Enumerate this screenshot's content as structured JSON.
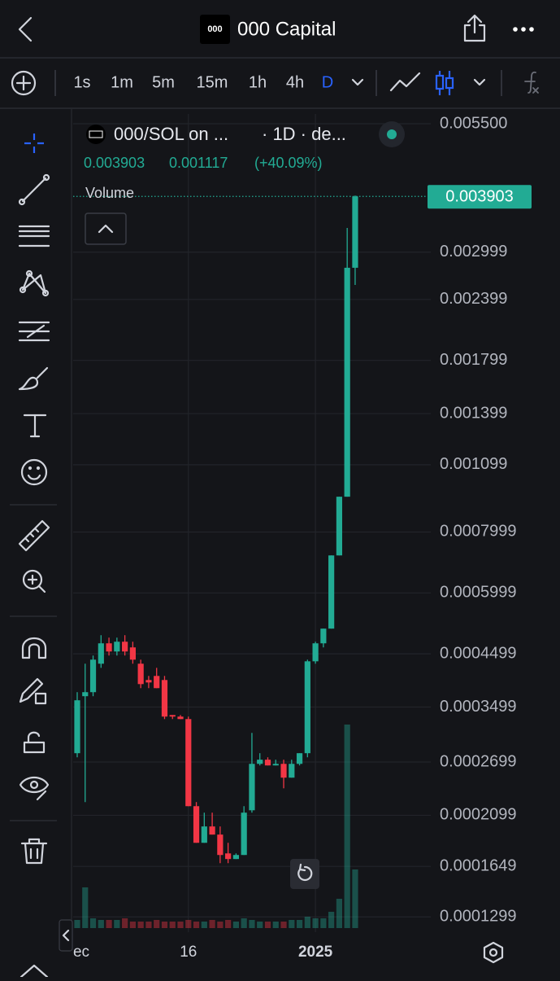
{
  "header": {
    "logo": "000",
    "title": "000 Capital"
  },
  "toolbar": {
    "timeframes": [
      "1s",
      "1m",
      "5m",
      "15m",
      "1h",
      "4h",
      "D"
    ],
    "active": "D"
  },
  "legend": {
    "symbol": "000/SOL on ...",
    "interval": "· 1D · de...",
    "change": "0.001117",
    "change_pct": "(+40.09%)",
    "volume": "Volume"
  },
  "chart_data": {
    "type": "candlestick",
    "log_scale": true,
    "grid": true,
    "up_color": "#22ab94",
    "down_color": "#f23645",
    "categories": [
      "ec",
      null,
      null,
      null,
      null,
      null,
      null,
      null,
      null,
      null,
      null,
      null,
      null,
      null,
      "16",
      null,
      null,
      null,
      null,
      null,
      null,
      null,
      null,
      null,
      null,
      null,
      null,
      null,
      null,
      null,
      "2025",
      null,
      null,
      null,
      null,
      null
    ],
    "open": [
      0.0002814,
      0.0003683,
      0.0003754,
      0.0004294,
      0.0004728,
      0.0004549,
      0.0004764,
      0.0004638,
      0.0004294,
      0.0003976,
      0.0004053,
      0.0003976,
      0.000337,
      0.0003345,
      0.0003306,
      0.0002191,
      0.0001843,
      0.0001991,
      0.0001916,
      0.0001753,
      0.0001707,
      0.000174,
      0.0002149,
      0.0002676,
      0.0002729,
      0.0002656,
      0.0002676,
      0.0002507,
      0.0002676,
      0.0002814,
      0.0004343,
      0.0004728,
      0.0005068,
      0.0007161,
      0.0009449,
      0.002786
    ],
    "high": [
      0.0003754,
      0.0004294,
      0.0004463,
      0.0004913,
      0.0004857,
      0.0004857,
      0.0004913,
      0.0004764,
      0.0004377,
      0.0004053,
      0.0004211,
      0.0004053,
      0.000337,
      0.000337,
      0.0003345,
      0.0002234,
      0.0002125,
      0.0002125,
      0.0001991,
      0.0001843,
      0.0001753,
      0.0002191,
      0.0003097,
      0.0002814,
      0.000276,
      0.0002729,
      0.0002729,
      0.0002729,
      0.0002814,
      0.0004377,
      0.0004764,
      0.0005068,
      0.0007161,
      0.0009449,
      0.003362,
      0.00392
    ],
    "low": [
      0.000276,
      0.0002234,
      0.0003683,
      0.0004211,
      0.0004463,
      0.0004463,
      0.0004463,
      0.0004294,
      0.0003826,
      0.0003826,
      0.0003826,
      0.0003306,
      0.0003306,
      0.0003306,
      0.0002191,
      0.0001843,
      0.0001843,
      0.0001916,
      0.0001674,
      0.0001674,
      0.0001707,
      0.000174,
      0.0002125,
      0.0002656,
      0.0002656,
      0.0002656,
      0.0002384,
      0.0002507,
      0.0002656,
      0.000276,
      0.0004294,
      0.0004638,
      0.0005068,
      0.0007161,
      0.0009449,
      0.002569
    ],
    "close": [
      0.0003613,
      0.0003754,
      0.0004377,
      0.0004728,
      0.0004549,
      0.0004764,
      0.0004549,
      0.0004377,
      0.00039,
      0.000393,
      0.0003826,
      0.0003345,
      0.0003345,
      0.0003306,
      0.0002191,
      0.0001843,
      0.0001991,
      0.0001916,
      0.000174,
      0.0001707,
      0.000174,
      0.0002125,
      0.0002676,
      0.0002729,
      0.0002656,
      0.0002676,
      0.0002507,
      0.0002676,
      0.0002814,
      0.0004343,
      0.0004728,
      0.0005068,
      0.0007161,
      0.0009449,
      0.002786,
      0.003903
    ],
    "volume": [
      10,
      50,
      12,
      10,
      10,
      10,
      12,
      8,
      8,
      8,
      10,
      8,
      8,
      8,
      10,
      8,
      8,
      10,
      8,
      10,
      8,
      12,
      10,
      8,
      8,
      8,
      8,
      10,
      10,
      14,
      12,
      12,
      20,
      36,
      250,
      72
    ],
    "ylim": [
      0.0001232,
      0.00576
    ],
    "yticks": [
      {
        "value": 0.0055,
        "label": "0.005500"
      },
      0.002999,
      0.002399,
      0.001799,
      0.001399,
      0.001099,
      0.0007999,
      0.0005999,
      0.0004499,
      0.0003499,
      0.0002699,
      0.0002099,
      0.0001649,
      0.0001299
    ]
  }
}
